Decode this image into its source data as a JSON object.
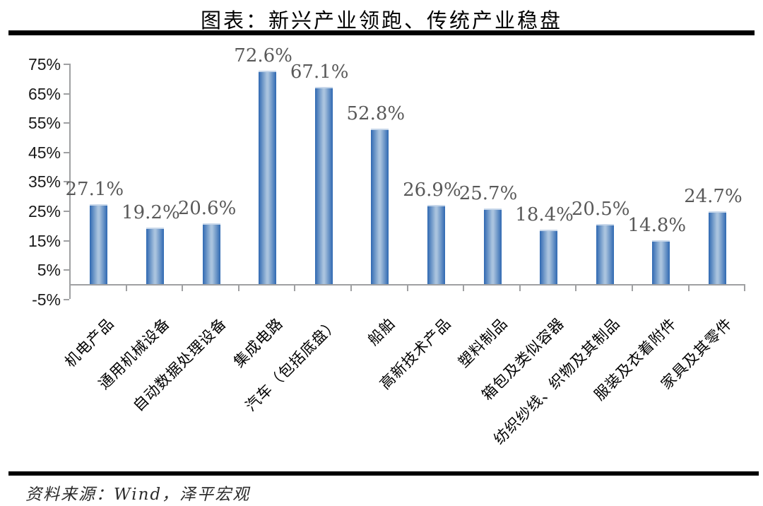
{
  "header": {
    "title": "图表：新兴产业领跑、传统产业稳盘"
  },
  "source": {
    "text": "资料来源：Wind，泽平宏观"
  },
  "colors": {
    "bar_edge": "#2E69B2",
    "bar_mid": "#A9C3DE",
    "axis": "#9FA0A2",
    "data_label": "#595959",
    "title_text": "#000000",
    "rule": "#000000"
  },
  "chart_data": {
    "type": "bar",
    "title": "图表：新兴产业领跑、传统产业稳盘",
    "xlabel": "",
    "ylabel": "",
    "unit": "%",
    "ylim": [
      -5,
      75
    ],
    "grid": false,
    "legend_position": "none",
    "categories": [
      "机电产品",
      "通用机械设备",
      "自动数据处理设备",
      "集成电路",
      "汽车（包括底盘）",
      "船舶",
      "高新技术产品",
      "塑料制品",
      "箱包及类似容器",
      "纺织纱线、织物及其制品",
      "服装及衣着附件",
      "家具及其零件"
    ],
    "values": [
      27.1,
      19.2,
      20.6,
      72.6,
      67.1,
      52.8,
      26.9,
      25.7,
      18.4,
      20.5,
      14.8,
      24.7
    ],
    "labels": [
      "27.1%",
      "19.2%",
      "20.6%",
      "72.6%",
      "67.1%",
      "52.8%",
      "26.9%",
      "25.7%",
      "18.4%",
      "20.5%",
      "14.8%",
      "24.7%"
    ],
    "ytick_values": [
      75,
      65,
      55,
      45,
      35,
      25,
      15,
      5,
      -5
    ],
    "yticks": [
      "75%",
      "65%",
      "55%",
      "45%",
      "35%",
      "25%",
      "15%",
      "5%",
      "-5%"
    ]
  }
}
